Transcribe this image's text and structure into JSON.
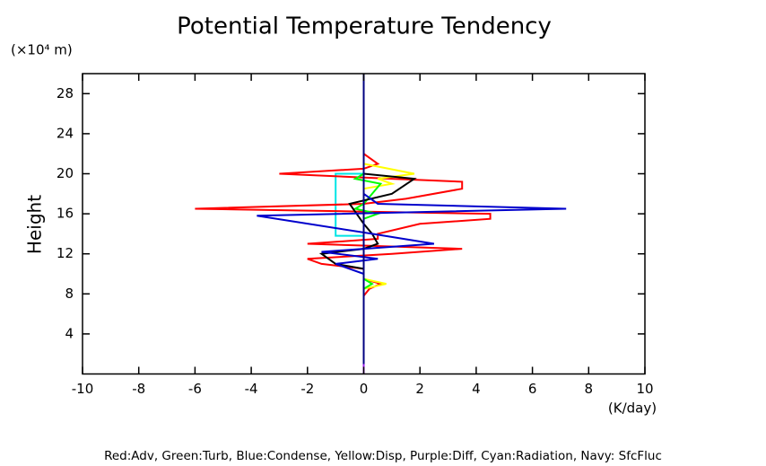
{
  "chart_data": {
    "type": "line",
    "title": "Potential Temperature Tendency",
    "y_unit_label": "(×10⁴ m)",
    "ylabel": "Height",
    "xlabel": "(K/day)",
    "legend_text": "Red:Adv, Green:Turb, Blue:Condense, Yellow:Disp, Purple:Diff, Cyan:Radiation, Navy: SfcFluc",
    "xlim": [
      -10,
      10
    ],
    "xticks": [
      -10,
      -8,
      -6,
      -4,
      -2,
      0,
      2,
      4,
      6,
      8,
      10
    ],
    "ylim": [
      0,
      30
    ],
    "yticks": [
      4,
      8,
      12,
      16,
      20,
      24,
      28
    ],
    "series": [
      {
        "color": "#00e5e5",
        "heights": [
          0,
          13.8,
          13.8,
          20,
          20,
          30
        ],
        "values": [
          0,
          0,
          -1,
          -1,
          0,
          0
        ]
      },
      {
        "color": "#ff0000",
        "heights": [
          0,
          7.8,
          8.5,
          9,
          9.5,
          10.5,
          11,
          11.5,
          12,
          12.5,
          13,
          13.5,
          14,
          15,
          15.5,
          16,
          16.5,
          17,
          17.5,
          18.5,
          19.2,
          19.5,
          20,
          20.5,
          21,
          22,
          29.5
        ],
        "values": [
          0,
          0,
          0.2,
          0.6,
          0,
          0,
          -1.5,
          -2,
          1,
          3.5,
          -2,
          0.5,
          0.5,
          2,
          4.5,
          4.5,
          -6,
          0,
          1.5,
          3.5,
          3.5,
          1,
          -3,
          0,
          0.5,
          0,
          0
        ]
      },
      {
        "color": "#ffff00",
        "heights": [
          0,
          8.5,
          9,
          9.5,
          18.5,
          19,
          19.5,
          20,
          21,
          30
        ],
        "values": [
          0,
          0,
          0.8,
          0,
          0,
          1,
          0.5,
          1.8,
          0,
          0
        ]
      },
      {
        "color": "#00ff00",
        "heights": [
          0,
          8.5,
          9,
          9.5,
          15.5,
          16,
          16.5,
          17,
          19,
          19.5,
          20,
          30
        ],
        "values": [
          0,
          0,
          0.3,
          0,
          0,
          0.5,
          -0.3,
          0,
          0.6,
          -0.3,
          0,
          0
        ]
      },
      {
        "color": "#000000",
        "heights": [
          0,
          10.5,
          11,
          12,
          12.5,
          13,
          14,
          15,
          17,
          18,
          19.5,
          20,
          29.5
        ],
        "values": [
          0,
          0,
          -1,
          -1.5,
          0,
          0.5,
          0.3,
          0,
          -0.5,
          1,
          1.8,
          0,
          0
        ]
      },
      {
        "color": "#0000cc",
        "heights": [
          0,
          10,
          11,
          11.5,
          12.2,
          12.5,
          13,
          14,
          15.8,
          16.5,
          17,
          18,
          20,
          29.5
        ],
        "values": [
          0,
          0,
          -1,
          0.5,
          -1.5,
          0,
          2.5,
          0.3,
          -3.8,
          7.2,
          0.5,
          0,
          0,
          0
        ]
      },
      {
        "color": "#000080",
        "heights": [
          0,
          30
        ],
        "values": [
          0,
          0
        ]
      },
      {
        "color": "#a020f0",
        "heights": [
          0,
          1
        ],
        "values": [
          0,
          0
        ]
      }
    ]
  }
}
